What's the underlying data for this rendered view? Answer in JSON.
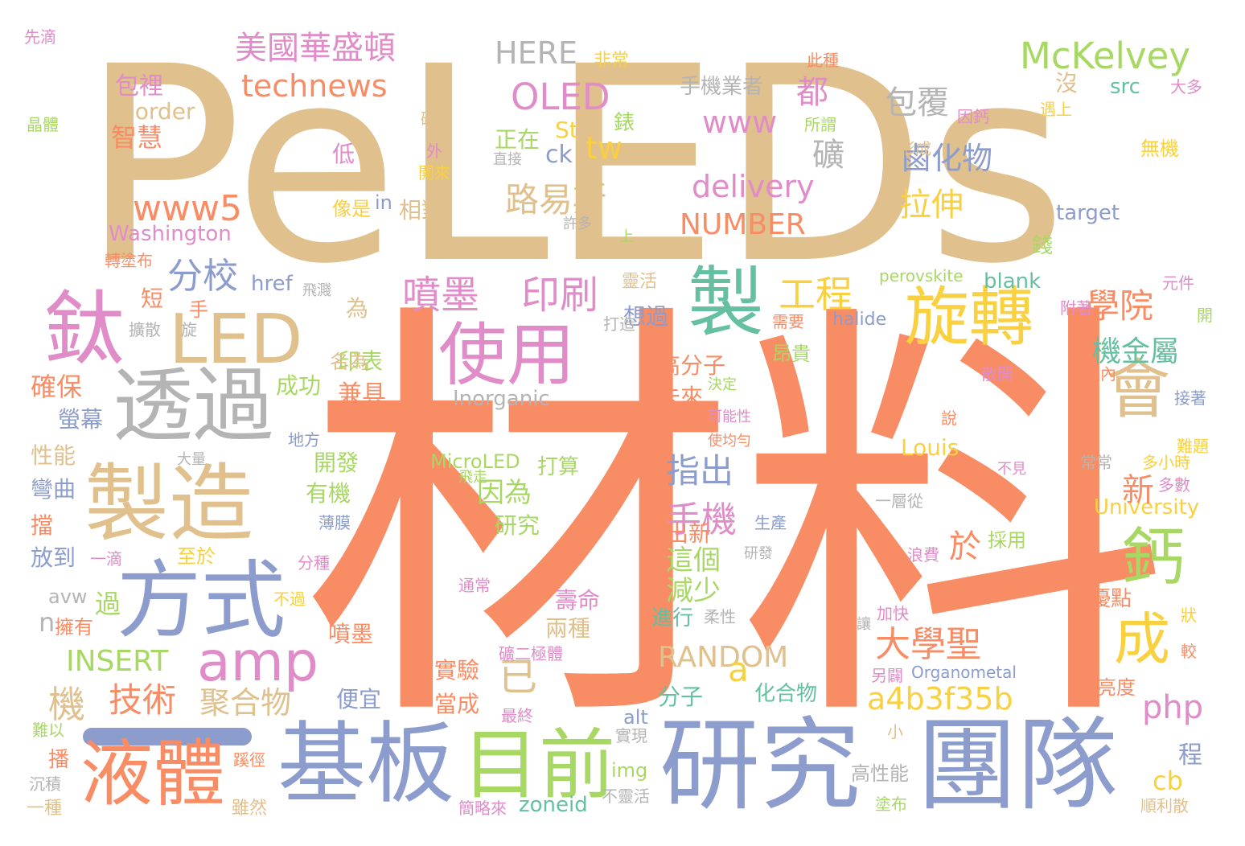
{
  "palette": {
    "tan": "#E0C08C",
    "orange": "#F88C64",
    "blue": "#8C9CCC",
    "pink": "#E08CC8",
    "green": "#A8D864",
    "yellow": "#F8D040",
    "gray": "#B4B4B4",
    "teal": "#64C0A0"
  },
  "words": [
    {
      "t": "PeLEDs",
      "c": "tan"
    },
    {
      "t": "材料",
      "c": "orange"
    },
    {
      "t": "研究",
      "c": "blue"
    },
    {
      "t": "團隊",
      "c": "blue"
    },
    {
      "t": "基板",
      "c": "blue"
    },
    {
      "t": "液體",
      "c": "orange"
    },
    {
      "t": "目前",
      "c": "green"
    },
    {
      "t": "方式",
      "c": "blue"
    },
    {
      "t": "製造",
      "c": "tan"
    },
    {
      "t": "透過",
      "c": "gray"
    },
    {
      "t": "鈦",
      "c": "pink"
    },
    {
      "t": "LED",
      "c": "tan"
    },
    {
      "t": "使用",
      "c": "pink"
    },
    {
      "t": "製",
      "c": "teal"
    },
    {
      "t": "旋轉",
      "c": "yellow"
    },
    {
      "t": "會",
      "c": "tan"
    },
    {
      "t": "amp",
      "c": "pink"
    },
    {
      "t": "鈣",
      "c": "green"
    },
    {
      "t": "成",
      "c": "yellow"
    },
    {
      "t": "美國華盛頓",
      "c": "pink"
    },
    {
      "t": "technews",
      "c": "orange"
    },
    {
      "t": "HERE",
      "c": "gray"
    },
    {
      "t": "OLED",
      "c": "pink"
    },
    {
      "t": "McKelvey",
      "c": "green"
    },
    {
      "t": "www",
      "c": "pink"
    },
    {
      "t": "包覆",
      "c": "gray"
    },
    {
      "t": "鹵化物",
      "c": "blue"
    },
    {
      "t": "路易斯",
      "c": "tan"
    },
    {
      "t": "delivery",
      "c": "pink"
    },
    {
      "t": "www5",
      "c": "orange"
    },
    {
      "t": "分校",
      "c": "blue"
    },
    {
      "t": "NUMBER",
      "c": "orange"
    },
    {
      "t": "拉伸",
      "c": "yellow"
    },
    {
      "t": "噴墨",
      "c": "pink"
    },
    {
      "t": "印刷",
      "c": "pink"
    },
    {
      "t": "工程",
      "c": "yellow"
    },
    {
      "t": "學院",
      "c": "orange"
    },
    {
      "t": "機金屬",
      "c": "teal"
    },
    {
      "t": "手機",
      "c": "pink"
    },
    {
      "t": "指出",
      "c": "blue"
    },
    {
      "t": "大學聖",
      "c": "orange"
    },
    {
      "t": "技術",
      "c": "orange"
    },
    {
      "t": "聚合物",
      "c": "tan"
    },
    {
      "t": "a4b3f35b",
      "c": "yellow"
    },
    {
      "t": "RANDOM",
      "c": "tan"
    },
    {
      "t": "INSERT",
      "c": "green"
    },
    {
      "t": "php",
      "c": "pink"
    },
    {
      "t": "Washington",
      "c": "pink"
    },
    {
      "t": "University",
      "c": "yellow"
    },
    {
      "t": "MicroLED",
      "c": "green"
    },
    {
      "t": "Inorganic",
      "c": "gray"
    },
    {
      "t": "Louis",
      "c": "yellow"
    },
    {
      "t": "因為",
      "c": "green"
    },
    {
      "t": "新",
      "c": "orange"
    },
    {
      "t": "這個",
      "c": "green"
    },
    {
      "t": "減少",
      "c": "green"
    },
    {
      "t": "於",
      "c": "orange"
    },
    {
      "t": "已",
      "c": "tan"
    },
    {
      "t": "機",
      "c": "tan"
    },
    {
      "t": "a",
      "c": "yellow"
    },
    {
      "t": "tw",
      "c": "yellow"
    },
    {
      "t": "ck",
      "c": "blue"
    },
    {
      "t": "St",
      "c": "yellow"
    },
    {
      "t": "都",
      "c": "pink"
    },
    {
      "t": "礦",
      "c": "gray"
    },
    {
      "t": "border",
      "c": "tan"
    },
    {
      "t": "智慧",
      "c": "orange"
    },
    {
      "t": "包裡",
      "c": "pink"
    },
    {
      "t": "src",
      "c": "teal"
    },
    {
      "t": "target",
      "c": "blue"
    },
    {
      "t": "blank",
      "c": "teal"
    },
    {
      "t": "zoneid",
      "c": "teal"
    },
    {
      "t": "img",
      "c": "green"
    },
    {
      "t": "alt",
      "c": "blue"
    },
    {
      "t": "cb",
      "c": "yellow"
    },
    {
      "t": "程",
      "c": "blue"
    },
    {
      "t": "href",
      "c": "blue"
    },
    {
      "t": "halide",
      "c": "blue"
    },
    {
      "t": "perovskite",
      "c": "green"
    },
    {
      "t": "Organometal",
      "c": "blue"
    },
    {
      "t": "avw",
      "c": "gray"
    },
    {
      "t": "n",
      "c": "gray"
    },
    {
      "t": "過",
      "c": "green"
    },
    {
      "t": "in",
      "c": "blue"
    },
    {
      "t": "手機業者",
      "c": "gray"
    },
    {
      "t": "正在",
      "c": "green"
    },
    {
      "t": "相對",
      "c": "tan"
    },
    {
      "t": "高分子",
      "c": "orange"
    },
    {
      "t": "未來",
      "c": "orange"
    },
    {
      "t": "確保",
      "c": "orange"
    },
    {
      "t": "螢幕",
      "c": "blue"
    },
    {
      "t": "性能",
      "c": "tan"
    },
    {
      "t": "彎曲",
      "c": "blue"
    },
    {
      "t": "放到",
      "c": "blue"
    },
    {
      "t": "兼具",
      "c": "orange"
    },
    {
      "t": "成功",
      "c": "green"
    },
    {
      "t": "開發",
      "c": "green"
    },
    {
      "t": "有機",
      "c": "green"
    },
    {
      "t": "研究",
      "c": "green"
    },
    {
      "t": "出新",
      "c": "orange"
    },
    {
      "t": "分子",
      "c": "teal"
    },
    {
      "t": "化合物",
      "c": "teal"
    },
    {
      "t": "進行",
      "c": "teal"
    },
    {
      "t": "壽命",
      "c": "pink"
    },
    {
      "t": "兩種",
      "c": "tan"
    },
    {
      "t": "實驗",
      "c": "orange"
    },
    {
      "t": "當成",
      "c": "orange"
    },
    {
      "t": "便宜",
      "c": "blue"
    },
    {
      "t": "噴墨",
      "c": "orange"
    },
    {
      "t": "優點",
      "c": "orange"
    },
    {
      "t": "高亮度",
      "c": "orange"
    },
    {
      "t": "高性能",
      "c": "gray"
    },
    {
      "t": "打算",
      "c": "green"
    },
    {
      "t": "至於",
      "c": "yellow"
    },
    {
      "t": "想過",
      "c": "blue"
    },
    {
      "t": "印表",
      "c": "green"
    },
    {
      "t": "名為",
      "c": "tan"
    },
    {
      "t": "為",
      "c": "tan"
    },
    {
      "t": "昂貴",
      "c": "green"
    },
    {
      "t": "像是",
      "c": "yellow"
    },
    {
      "t": "低",
      "c": "pink"
    },
    {
      "t": "沒",
      "c": "tan"
    },
    {
      "t": "錢",
      "c": "green"
    },
    {
      "t": "錶",
      "c": "green"
    },
    {
      "t": "無機",
      "c": "yellow"
    },
    {
      "t": "非常",
      "c": "yellow"
    },
    {
      "t": "此種",
      "c": "orange"
    },
    {
      "t": "所謂",
      "c": "green"
    },
    {
      "t": "因鈣",
      "c": "pink"
    },
    {
      "t": "形成",
      "c": "tan"
    },
    {
      "t": "遇上",
      "c": "yellow"
    },
    {
      "t": "大多",
      "c": "pink"
    },
    {
      "t": "先滴",
      "c": "pink"
    },
    {
      "t": "晶體",
      "c": "green"
    },
    {
      "t": "礦為",
      "c": "tan"
    },
    {
      "t": "外",
      "c": "pink"
    },
    {
      "t": "開來",
      "c": "yellow"
    },
    {
      "t": "直接",
      "c": "gray"
    },
    {
      "t": "許多",
      "c": "gray"
    },
    {
      "t": "上",
      "c": "green"
    },
    {
      "t": "轉塗布",
      "c": "orange"
    },
    {
      "t": "飛濺",
      "c": "gray"
    },
    {
      "t": "短",
      "c": "orange"
    },
    {
      "t": "手",
      "c": "orange"
    },
    {
      "t": "擴散",
      "c": "gray"
    },
    {
      "t": "旋",
      "c": "gray"
    },
    {
      "t": "打造",
      "c": "gray"
    },
    {
      "t": "靈活",
      "c": "tan"
    },
    {
      "t": "需要",
      "c": "orange"
    },
    {
      "t": "地方",
      "c": "blue"
    },
    {
      "t": "大量",
      "c": "gray"
    },
    {
      "t": "擋",
      "c": "orange"
    },
    {
      "t": "一滴",
      "c": "pink"
    },
    {
      "t": "分種",
      "c": "pink"
    },
    {
      "t": "研發",
      "c": "gray"
    },
    {
      "t": "不過",
      "c": "yellow"
    },
    {
      "t": "薄膜",
      "c": "blue"
    },
    {
      "t": "生產",
      "c": "blue"
    },
    {
      "t": "一層從",
      "c": "gray"
    },
    {
      "t": "採用",
      "c": "green"
    },
    {
      "t": "浪費",
      "c": "pink"
    },
    {
      "t": "通常",
      "c": "pink"
    },
    {
      "t": "擁有",
      "c": "orange"
    },
    {
      "t": "礦二極體",
      "c": "pink"
    },
    {
      "t": "柔性",
      "c": "gray"
    },
    {
      "t": "加快",
      "c": "pink"
    },
    {
      "t": "讓",
      "c": "gray"
    },
    {
      "t": "另闢",
      "c": "pink"
    },
    {
      "t": "狀",
      "c": "yellow"
    },
    {
      "t": "較",
      "c": "orange"
    },
    {
      "t": "最終",
      "c": "pink"
    },
    {
      "t": "實現",
      "c": "gray"
    },
    {
      "t": "小",
      "c": "tan"
    },
    {
      "t": "不靈活",
      "c": "gray"
    },
    {
      "t": "簡略來",
      "c": "pink"
    },
    {
      "t": "塗布",
      "c": "green"
    },
    {
      "t": "順利散",
      "c": "tan"
    },
    {
      "t": "雖然",
      "c": "tan"
    },
    {
      "t": "蹊徑",
      "c": "orange"
    },
    {
      "t": "播",
      "c": "orange"
    },
    {
      "t": "一種",
      "c": "tan"
    },
    {
      "t": "沉積",
      "c": "gray"
    },
    {
      "t": "難以",
      "c": "green"
    },
    {
      "t": "元件",
      "c": "pink"
    },
    {
      "t": "開",
      "c": "green"
    },
    {
      "t": "附著",
      "c": "pink"
    },
    {
      "t": "散開",
      "c": "pink"
    },
    {
      "t": "以內",
      "c": "orange"
    },
    {
      "t": "接著",
      "c": "blue"
    },
    {
      "t": "決定",
      "c": "green"
    },
    {
      "t": "可能性",
      "c": "pink"
    },
    {
      "t": "使均勻",
      "c": "orange"
    },
    {
      "t": "說",
      "c": "orange"
    },
    {
      "t": "疊",
      "c": "orange"
    },
    {
      "t": "不見",
      "c": "pink"
    },
    {
      "t": "飛走",
      "c": "green"
    },
    {
      "t": "常常",
      "c": "gray"
    },
    {
      "t": "多小時",
      "c": "yellow"
    },
    {
      "t": "多數",
      "c": "pink"
    },
    {
      "t": "難題",
      "c": "yellow"
    }
  ]
}
